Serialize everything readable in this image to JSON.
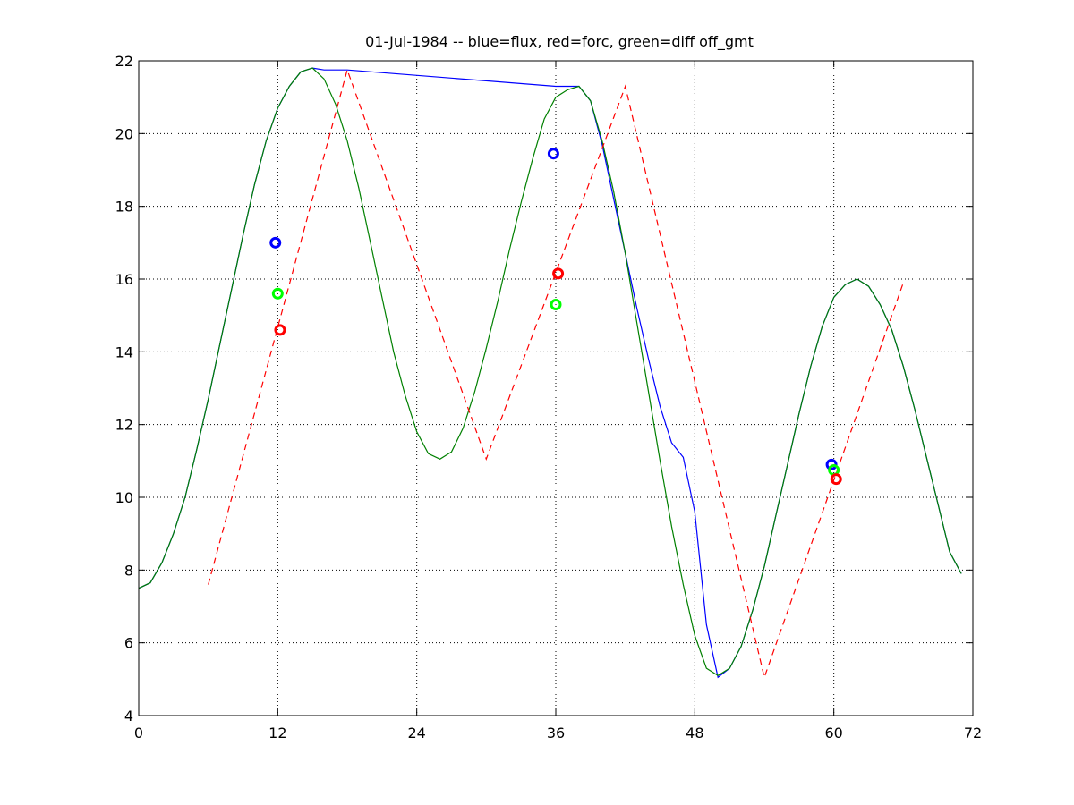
{
  "chart_data": {
    "type": "line",
    "title": "01-Jul-1984 -- blue=flux, red=forc, green=diff off_gmt",
    "xlabel": "",
    "ylabel": "",
    "xlim": [
      0,
      72
    ],
    "ylim": [
      4,
      22
    ],
    "xticks": [
      0,
      12,
      24,
      36,
      48,
      60,
      72
    ],
    "yticks": [
      4,
      6,
      8,
      10,
      12,
      14,
      16,
      18,
      20,
      22
    ],
    "grid": true,
    "colors": {
      "flux": "#0000ff",
      "forc": "#ff0000",
      "diff": "#008000",
      "marker_green": "#00ff00"
    },
    "series": [
      {
        "style": "solid",
        "color": "#0000ff",
        "x": [
          0,
          1,
          2,
          3,
          4,
          5,
          6,
          7,
          8,
          9,
          10,
          11,
          12,
          13,
          14,
          15,
          16,
          18,
          36,
          38,
          39,
          40,
          41,
          42,
          43,
          44,
          45,
          46,
          47,
          48,
          49,
          50,
          51,
          52,
          53,
          54,
          55,
          56,
          57,
          58,
          59,
          60,
          61,
          62,
          63,
          64,
          65,
          66,
          67,
          68,
          69,
          70,
          71
        ],
        "y": [
          7.5,
          7.65,
          8.2,
          9.0,
          10.0,
          11.3,
          12.7,
          14.2,
          15.7,
          17.2,
          18.6,
          19.8,
          20.7,
          21.3,
          21.7,
          21.8,
          21.75,
          21.75,
          21.3,
          21.3,
          20.9,
          19.7,
          18.2,
          16.7,
          15.2,
          13.8,
          12.5,
          11.5,
          11.1,
          9.6,
          6.5,
          5.05,
          5.3,
          5.9,
          6.9,
          8.1,
          9.5,
          10.9,
          12.3,
          13.6,
          14.7,
          15.5,
          15.85,
          16.0,
          15.8,
          15.3,
          14.6,
          13.6,
          12.4,
          11.1,
          9.8,
          8.5,
          7.9
        ]
      },
      {
        "style": "solid",
        "color": "#008000",
        "x": [
          0,
          1,
          2,
          3,
          4,
          5,
          6,
          7,
          8,
          9,
          10,
          11,
          12,
          13,
          14,
          15,
          16,
          17,
          18,
          19,
          20,
          21,
          22,
          23,
          24,
          25,
          26,
          27,
          28,
          29,
          30,
          31,
          32,
          33,
          34,
          35,
          36,
          37,
          38,
          39,
          40,
          41,
          42,
          43,
          44,
          45,
          46,
          47,
          48,
          49,
          50,
          51,
          52,
          53,
          54,
          55,
          56,
          57,
          58,
          59,
          60,
          61,
          62,
          63,
          64,
          65,
          66,
          67,
          68,
          69,
          70,
          71
        ],
        "y": [
          7.5,
          7.65,
          8.2,
          9.0,
          10.0,
          11.3,
          12.7,
          14.2,
          15.7,
          17.2,
          18.6,
          19.8,
          20.7,
          21.3,
          21.7,
          21.8,
          21.5,
          20.8,
          19.8,
          18.5,
          17.0,
          15.5,
          14.0,
          12.8,
          11.8,
          11.2,
          11.05,
          11.25,
          11.9,
          12.9,
          14.1,
          15.4,
          16.8,
          18.1,
          19.3,
          20.4,
          21.0,
          21.2,
          21.3,
          20.9,
          19.8,
          18.4,
          16.7,
          14.8,
          12.9,
          11.0,
          9.2,
          7.6,
          6.2,
          5.3,
          5.1,
          5.3,
          5.9,
          6.9,
          8.1,
          9.5,
          10.9,
          12.3,
          13.6,
          14.7,
          15.5,
          15.85,
          16.0,
          15.8,
          15.3,
          14.6,
          13.6,
          12.4,
          11.1,
          9.8,
          8.5,
          7.9
        ]
      },
      {
        "style": "dashed",
        "color": "#ff0000",
        "x": [
          6,
          18,
          30,
          42,
          54,
          66
        ],
        "y": [
          7.6,
          21.75,
          11.05,
          21.3,
          5.05,
          15.9
        ]
      }
    ],
    "markers": [
      {
        "x": 11.8,
        "y": 17.0,
        "color": "#0000ff"
      },
      {
        "x": 12.0,
        "y": 15.6,
        "color": "#00ff00"
      },
      {
        "x": 12.2,
        "y": 14.6,
        "color": "#ff0000"
      },
      {
        "x": 35.8,
        "y": 19.45,
        "color": "#0000ff"
      },
      {
        "x": 36.0,
        "y": 15.3,
        "color": "#00ff00"
      },
      {
        "x": 36.2,
        "y": 16.15,
        "color": "#ff0000"
      },
      {
        "x": 59.8,
        "y": 10.9,
        "color": "#0000ff"
      },
      {
        "x": 60.0,
        "y": 10.75,
        "color": "#00ff00"
      },
      {
        "x": 60.2,
        "y": 10.5,
        "color": "#ff0000"
      }
    ]
  }
}
